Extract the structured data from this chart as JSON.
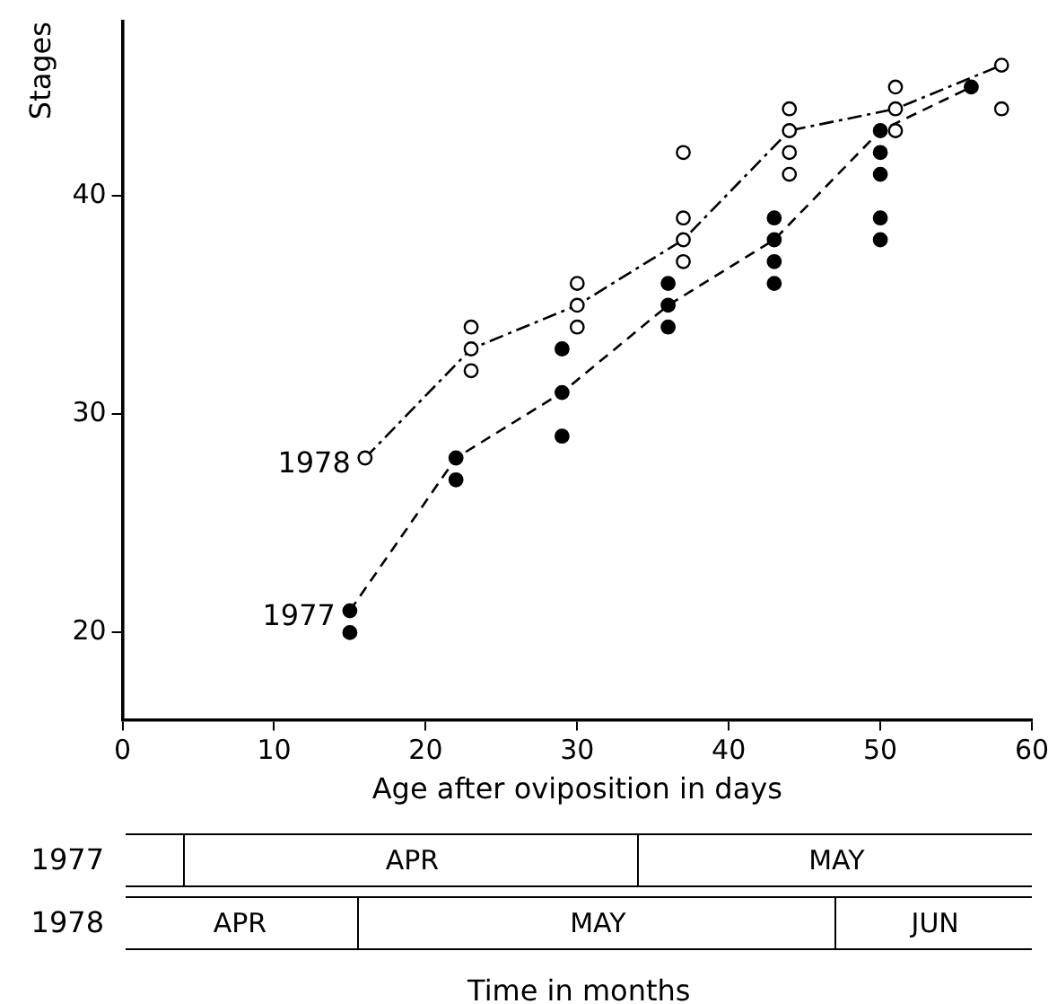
{
  "chart_data": {
    "type": "scatter",
    "xlabel": "Age after oviposition in days",
    "ylabel": "Stages",
    "xlim": [
      0,
      60
    ],
    "xticks": [
      0,
      10,
      20,
      30,
      40,
      50,
      60
    ],
    "ylim": [
      16,
      48
    ],
    "yticks": [
      20,
      30,
      40
    ],
    "grid": false,
    "legend": false,
    "marker": "circle",
    "series": [
      {
        "name": "1977",
        "color": "#000000",
        "x": [
          15,
          15,
          22,
          22,
          29,
          29,
          29,
          36,
          36,
          36,
          43,
          43,
          43,
          43,
          50,
          50,
          50,
          50,
          50,
          56
        ],
        "values": [
          21,
          20,
          28,
          27,
          33,
          31,
          29,
          36,
          35,
          34,
          39,
          38,
          37,
          36,
          43,
          42,
          41,
          39,
          38,
          45
        ]
      },
      {
        "name": "1978",
        "color": "#ffffff",
        "x": [
          16,
          23,
          23,
          23,
          30,
          30,
          30,
          37,
          37,
          37,
          37,
          44,
          44,
          44,
          44,
          51,
          51,
          51,
          58,
          58
        ],
        "values": [
          28,
          34,
          33,
          32,
          36,
          35,
          34,
          42,
          39,
          38,
          37,
          44,
          43,
          42,
          41,
          45,
          44,
          43,
          46,
          44
        ]
      },
      {
        "type": "line",
        "color": "#000000",
        "line_style": "dashed",
        "marker": "none",
        "x": [
          15,
          22,
          29,
          36,
          43,
          50,
          56
        ],
        "values": [
          21,
          28,
          31,
          35,
          38,
          43,
          45
        ]
      },
      {
        "type": "line",
        "color": "#000000",
        "line_style": "dashdot",
        "marker": "none",
        "x": [
          16,
          23,
          30,
          37,
          44,
          51,
          58
        ],
        "values": [
          28,
          33,
          35,
          38,
          43,
          44,
          46
        ]
      }
    ],
    "annotations": [
      "1977",
      "APR",
      "MAY",
      "1978",
      "APR",
      "MAY",
      "JUN",
      "Time in months"
    ]
  }
}
